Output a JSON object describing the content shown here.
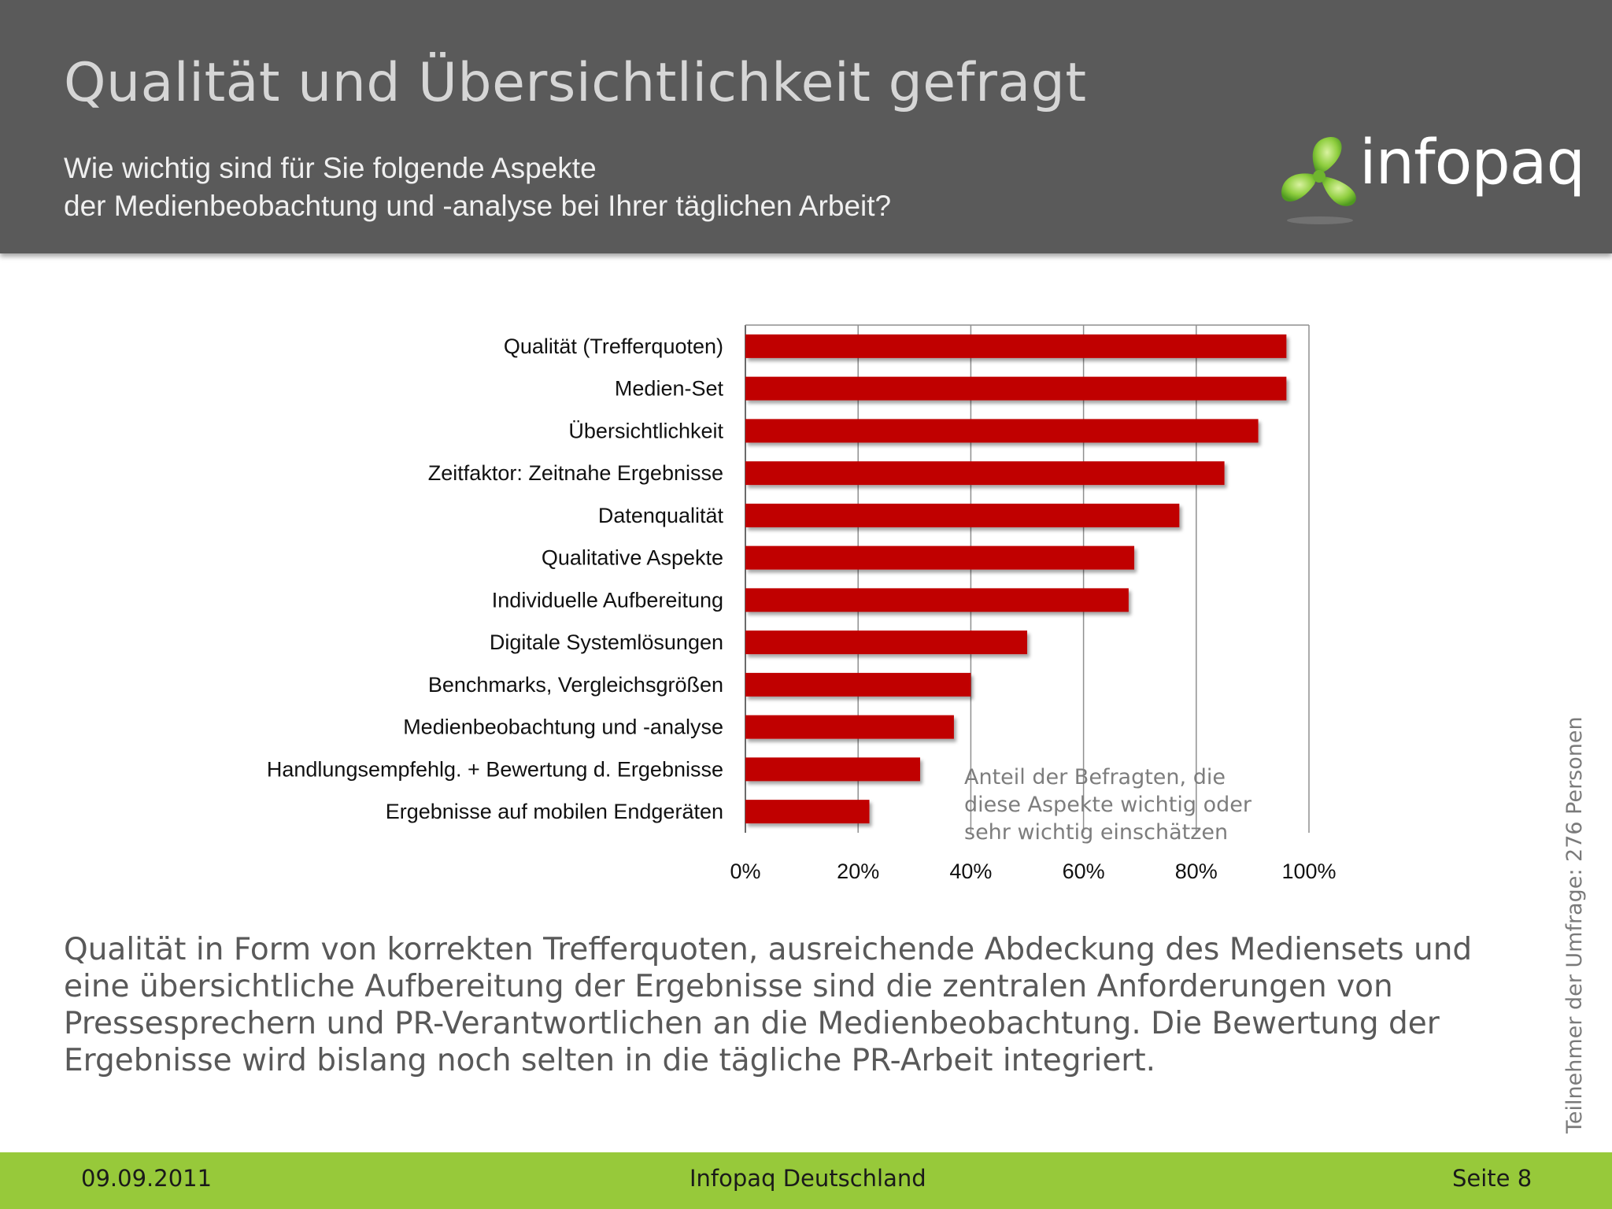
{
  "slide": {
    "title": "Qualität und Übersichtlichkeit gefragt",
    "subtitle_line1": "Wie wichtig sind für Sie folgende Aspekte",
    "subtitle_line2": "der Medienbeobachtung und -analyse bei Ihrer täglichen Arbeit?",
    "logo_text": "infopaq",
    "chart_note_line1": "Anteil der Befragten, die",
    "chart_note_line2": "diese Aspekte wichtig oder",
    "chart_note_line3": "sehr wichtig einschätzen",
    "summary_line1": "Qualität in Form von korrekten Trefferquoten, ausreichende Abdeckung des Mediensets und",
    "summary_line2": "eine übersichtliche Aufbereitung der Ergebnisse sind die zentralen Anforderungen von",
    "summary_line3": "Pressesprechern und PR-Verantwortlichen an die Medienbeobachtung. Die Bewertung der",
    "summary_line4": "Ergebnisse wird bislang noch selten in die tägliche PR-Arbeit integriert.",
    "side_note": "Teilnehmer der Umfrage: 276 Personen"
  },
  "footer": {
    "date": "09.09.2011",
    "company": "Infopaq Deutschland",
    "page": "Seite 8"
  },
  "colors": {
    "header_bg": "#5a5a5a",
    "bar": "#c00000",
    "footer_bg": "#97c93a",
    "logo_green": "#7dc242"
  },
  "chart_data": {
    "type": "bar",
    "orientation": "horizontal",
    "categories": [
      "Qualität (Trefferquoten)",
      "Medien-Set",
      "Übersichtlichkeit",
      "Zeitfaktor: Zeitnahe Ergebnisse",
      "Datenqualität",
      "Qualitative Aspekte",
      "Individuelle Aufbereitung",
      "Digitale Systemlösungen",
      "Benchmarks, Vergleichsgrößen",
      "Medienbeobachtung und -analyse",
      "Handlungsempfehlg. + Bewertung d. Ergebnisse",
      "Ergebnisse auf mobilen Endgeräten"
    ],
    "values": [
      96,
      96,
      91,
      85,
      77,
      69,
      68,
      50,
      40,
      37,
      31,
      22
    ],
    "xlim": [
      0,
      100
    ],
    "xticks": [
      "0%",
      "20%",
      "40%",
      "60%",
      "80%",
      "100%"
    ],
    "grid": true,
    "title": "",
    "xlabel": "",
    "ylabel": ""
  }
}
